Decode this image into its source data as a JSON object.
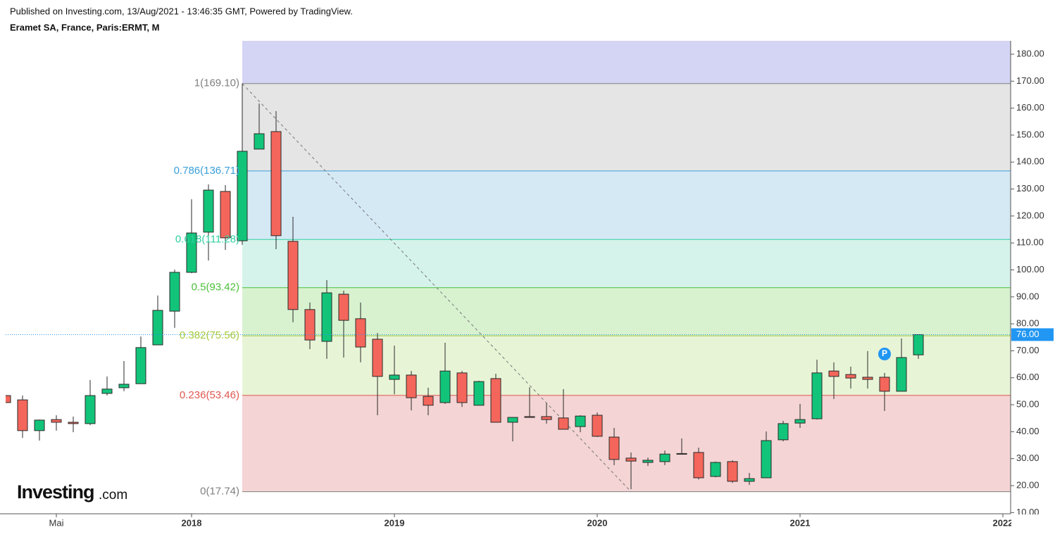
{
  "header": {
    "published": "Published on Investing.com, 13/Aug/2021 - 13:46:35 GMT, Powered by TradingView.",
    "symbol": "Eramet SA, France, Paris:ERMT, M"
  },
  "logo": {
    "brand": "Investing",
    "suffix": ".com"
  },
  "chart_data": {
    "type": "candlestick",
    "categories": [
      null,
      null,
      null,
      "Mai",
      null,
      null,
      null,
      null,
      null,
      null,
      null,
      "2018",
      null,
      null,
      null,
      null,
      null,
      null,
      null,
      null,
      null,
      null,
      null,
      "2019",
      null,
      null,
      null,
      null,
      null,
      null,
      null,
      null,
      null,
      null,
      null,
      "2020",
      null,
      null,
      null,
      null,
      null,
      null,
      null,
      null,
      null,
      null,
      null,
      "2021",
      null,
      null,
      null,
      null,
      null,
      null,
      null,
      null,
      null,
      null,
      null,
      "2022"
    ],
    "series": {
      "up_color": "#12c47a",
      "down_color": "#f4665b",
      "open": [
        53.4,
        51.8,
        40.4,
        44.5,
        43.5,
        43.0,
        54.2,
        56.3,
        57.8,
        72.2,
        84.7,
        99.1,
        114.0,
        129.1,
        110.8,
        144.8,
        151.3,
        110.6,
        85.3,
        73.5,
        91.0,
        81.9,
        74.3,
        59.4,
        61.0,
        53.1,
        50.8,
        61.8,
        49.8,
        59.7,
        43.5,
        45.6,
        45.6,
        45.1,
        41.9,
        46.1,
        38.0,
        30.2,
        28.6,
        28.9,
        31.9,
        32.3,
        23.4,
        28.9,
        21.6,
        22.9,
        37.0,
        43.2,
        44.8,
        62.5,
        61.2,
        60.2,
        60.2,
        55.0,
        68.5,
        null,
        null,
        null,
        null,
        null
      ],
      "high": [
        53.6,
        53.4,
        44.5,
        46.1,
        45.6,
        59.2,
        60.5,
        66.2,
        75.3,
        90.5,
        100.1,
        126.2,
        131.7,
        131.5,
        169.1,
        161.7,
        158.9,
        119.7,
        87.9,
        96.2,
        92.3,
        87.9,
        76.6,
        71.9,
        62.5,
        56.3,
        73.0,
        62.5,
        58.9,
        61.5,
        45.3,
        56.5,
        50.5,
        55.8,
        46.1,
        47.1,
        41.4,
        32.3,
        30.4,
        33.0,
        37.5,
        34.1,
        28.9,
        29.4,
        24.7,
        40.1,
        44.0,
        50.3,
        66.7,
        65.7,
        64.1,
        69.9,
        61.8,
        74.6,
        76.0,
        null,
        null,
        null,
        null,
        null
      ],
      "low": [
        50.8,
        37.7,
        36.7,
        40.4,
        39.8,
        42.4,
        53.4,
        55.0,
        57.8,
        72.2,
        78.5,
        98.8,
        103.5,
        107.4,
        109.3,
        144.8,
        107.7,
        80.6,
        70.6,
        67.0,
        67.5,
        65.7,
        46.1,
        53.9,
        47.9,
        46.1,
        50.3,
        49.2,
        49.8,
        43.5,
        36.4,
        45.3,
        43.0,
        40.9,
        39.8,
        38.0,
        27.6,
        18.7,
        27.3,
        27.6,
        31.7,
        22.3,
        23.1,
        21.0,
        20.3,
        22.9,
        36.4,
        41.4,
        44.5,
        52.1,
        56.0,
        56.0,
        47.7,
        55.0,
        67.0,
        null,
        null,
        null,
        null,
        null
      ],
      "close": [
        50.8,
        40.4,
        44.3,
        43.5,
        43.0,
        53.4,
        55.8,
        57.6,
        71.2,
        85.0,
        99.1,
        113.7,
        129.6,
        111.9,
        144.0,
        150.5,
        112.7,
        85.3,
        74.0,
        91.5,
        81.3,
        71.4,
        60.5,
        61.0,
        52.6,
        49.8,
        62.5,
        50.8,
        58.6,
        43.5,
        45.3,
        45.3,
        44.5,
        40.9,
        45.8,
        38.3,
        29.7,
        29.1,
        29.4,
        31.7,
        31.7,
        22.9,
        28.6,
        21.6,
        22.6,
        36.7,
        43.0,
        44.5,
        61.8,
        60.5,
        59.9,
        59.4,
        55.0,
        67.5,
        76.0,
        null,
        null,
        null,
        null,
        null
      ]
    },
    "ylim": [
      9.56,
      184.96
    ],
    "yticks": [
      {
        "value": 10,
        "label": "10.00"
      },
      {
        "value": 20,
        "label": "20.00"
      },
      {
        "value": 30,
        "label": "30.00"
      },
      {
        "value": 40,
        "label": "40.00"
      },
      {
        "value": 50,
        "label": "50.00"
      },
      {
        "value": 60,
        "label": "60.00"
      },
      {
        "value": 70,
        "label": "70.00"
      },
      {
        "value": 80,
        "label": "80.00"
      },
      {
        "value": 90,
        "label": "90.00"
      },
      {
        "value": 100,
        "label": "100.00"
      },
      {
        "value": 110,
        "label": "110.00"
      },
      {
        "value": 120,
        "label": "120.00"
      },
      {
        "value": 130,
        "label": "130.00"
      },
      {
        "value": 140,
        "label": "140.00"
      },
      {
        "value": 150,
        "label": "150.00"
      },
      {
        "value": 160,
        "label": "160.00"
      },
      {
        "value": 170,
        "label": "170.00"
      },
      {
        "value": 180,
        "label": "180.00"
      }
    ],
    "fib_levels": [
      {
        "value": 169.1,
        "label": "1(169.10)",
        "color": "#808080",
        "fill": "#d4d4f4"
      },
      {
        "value": 136.71,
        "label": "0.786(136.71)",
        "color": "#3a9fd8",
        "fill": "#e5e5e5"
      },
      {
        "value": 111.28,
        "label": "0.618(111.28)",
        "color": "#2fcf9f",
        "fill": "#d5e9f5"
      },
      {
        "value": 93.42,
        "label": "0.5(93.42)",
        "color": "#4cbf3a",
        "fill": "#d5f3ea"
      },
      {
        "value": 75.56,
        "label": "0.382(75.56)",
        "color": "#a3c83b",
        "fill": "#d8f2d0"
      },
      {
        "value": 53.46,
        "label": "0.236(53.46)",
        "color": "#e0574f",
        "fill": "#e8f4d6"
      },
      {
        "value": 17.74,
        "label": "0(17.74)",
        "color": "#808080",
        "fill": "#f4d4d4"
      }
    ],
    "last_price": {
      "value": 76,
      "label": "76.00",
      "color": "#2196f3"
    },
    "marker": {
      "label": "P",
      "color": "#2196f3"
    }
  }
}
